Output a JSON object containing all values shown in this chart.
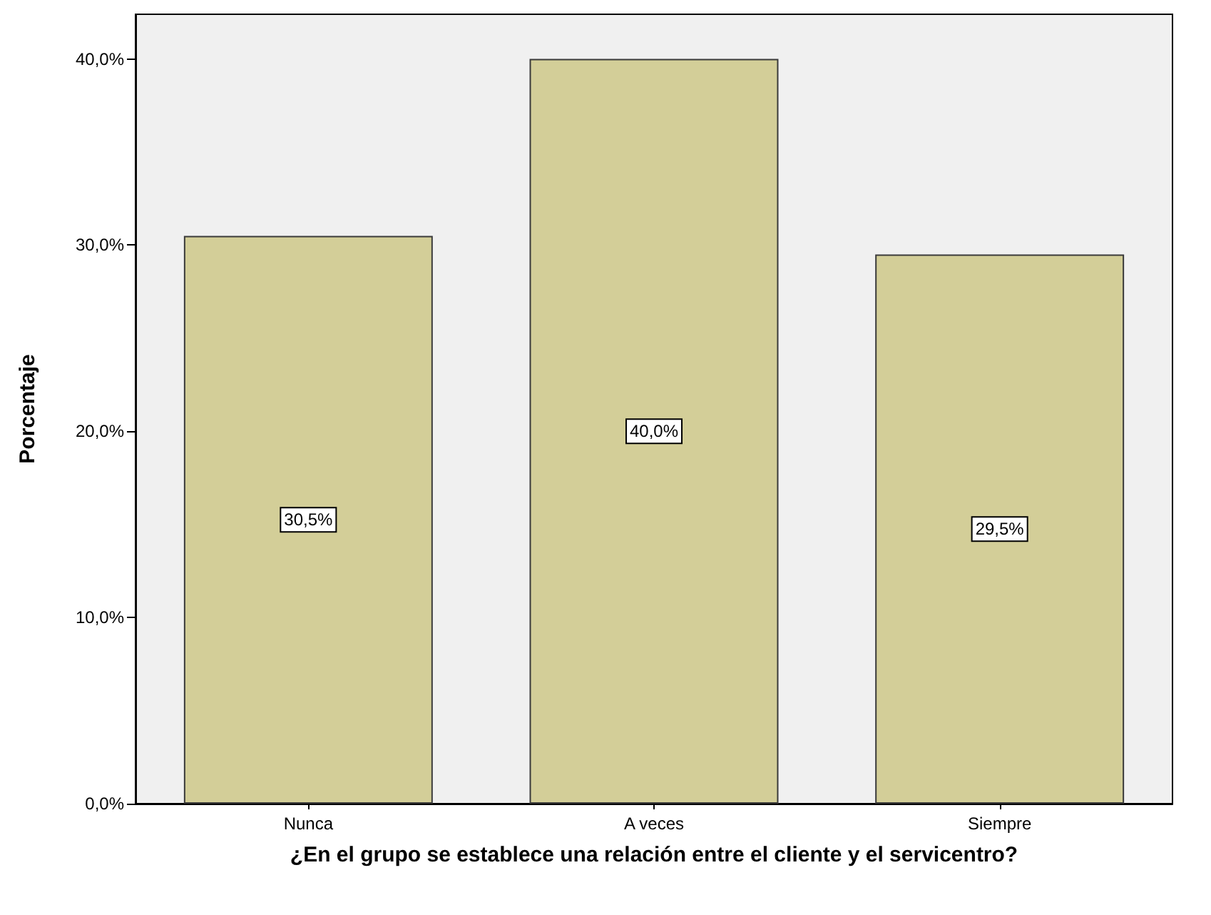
{
  "chart_data": {
    "type": "bar",
    "xlabel": "¿En el grupo se establece una relación entre el cliente y el servicentro?",
    "ylabel": "Porcentaje",
    "categories": [
      "Nunca",
      "A veces",
      "Siempre"
    ],
    "values": [
      30.5,
      40.0,
      29.5
    ],
    "value_labels": [
      "30,5%",
      "40,0%",
      "29,5%"
    ],
    "color": "#d3ce98",
    "ylim": [
      0,
      42.4
    ],
    "yticks": [
      {
        "value": 0,
        "label": "0,0%"
      },
      {
        "value": 10,
        "label": "10,0%"
      },
      {
        "value": 20,
        "label": "20,0%"
      },
      {
        "value": 30,
        "label": "30,0%"
      },
      {
        "value": 40,
        "label": "40,0%"
      }
    ],
    "grid": false
  }
}
